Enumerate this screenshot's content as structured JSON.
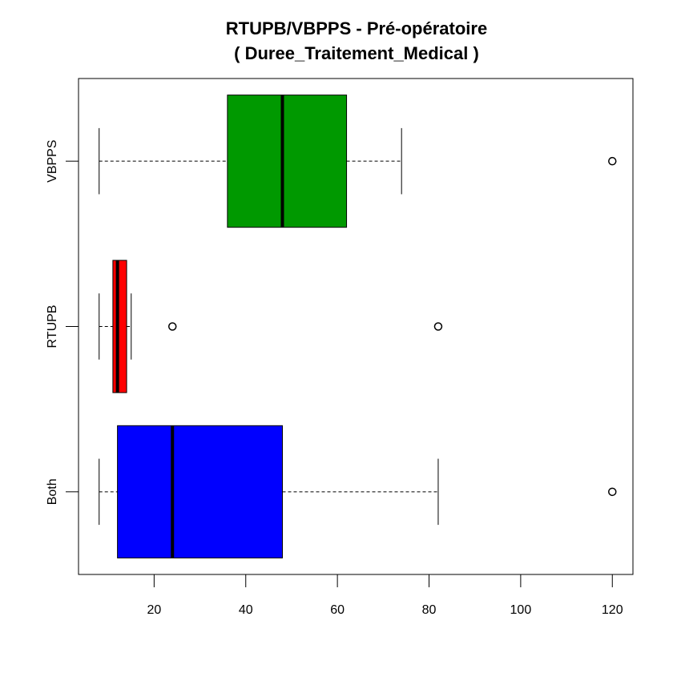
{
  "chart_data": {
    "type": "boxplot",
    "orientation": "horizontal",
    "title": "RTUPB/VBPPS - Pré-opératoire",
    "subtitle": "( Duree_Traitement_Medical )",
    "xlabel": "",
    "ylabel": "",
    "xlim": [
      3.5,
      124.5
    ],
    "x_ticks": [
      20,
      40,
      60,
      80,
      100,
      120
    ],
    "grid": false,
    "legend": "none",
    "categories": [
      "Both",
      "RTUPB",
      "VBPPS"
    ],
    "boxes": [
      {
        "category": "Both",
        "color": "#0000ff",
        "whisker_low": 8,
        "q1": 12,
        "median": 24,
        "q3": 48,
        "whisker_high": 82,
        "outliers": [
          120
        ]
      },
      {
        "category": "RTUPB",
        "color": "#ff0000",
        "whisker_low": 8,
        "q1": 11,
        "median": 12,
        "q3": 14,
        "whisker_high": 15,
        "outliers": [
          24,
          82
        ]
      },
      {
        "category": "VBPPS",
        "color": "#009900",
        "whisker_low": 8,
        "q1": 36,
        "median": 48,
        "q3": 62,
        "whisker_high": 74,
        "outliers": [
          120
        ]
      }
    ]
  }
}
